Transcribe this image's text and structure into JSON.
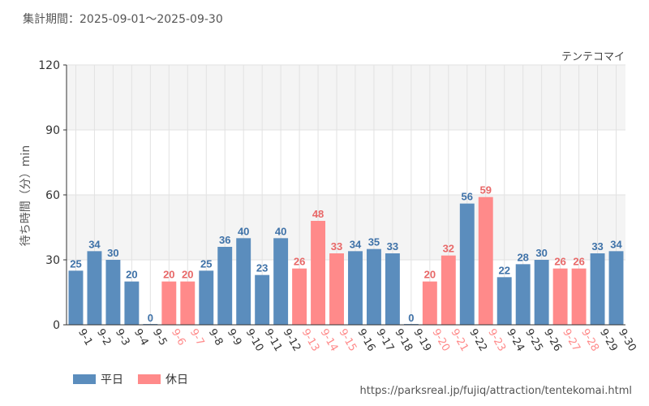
{
  "header": {
    "period_label": "集計期間：2025-09-01～2025-09-30"
  },
  "footer": {
    "source_url": "https://parksreal.jp/fujiq/attraction/tentekomai.html"
  },
  "colors": {
    "weekday": "#5b8dbd",
    "holiday": "#ff8a8a",
    "weekday_text": "#3f72a8",
    "holiday_text": "#e86868",
    "band": "#f4f4f4",
    "grid": "#e2e2e2"
  },
  "chart_data": {
    "type": "bar",
    "title": "テンテコマイ",
    "ylabel": "待ち時間（分）min",
    "xlabel": "",
    "ylim": [
      0,
      120
    ],
    "yticks": [
      0,
      30,
      60,
      90,
      120
    ],
    "legend": [
      {
        "label": "平日",
        "key": "weekday"
      },
      {
        "label": "休日",
        "key": "holiday"
      }
    ],
    "legend_placement": "bottom-left",
    "categories": [
      "9-1",
      "9-2",
      "9-3",
      "9-4",
      "9-5",
      "9-6",
      "9-7",
      "9-8",
      "9-9",
      "9-10",
      "9-11",
      "9-12",
      "9-13",
      "9-14",
      "9-15",
      "9-16",
      "9-17",
      "9-18",
      "9-19",
      "9-20",
      "9-21",
      "9-22",
      "9-23",
      "9-24",
      "9-25",
      "9-26",
      "9-27",
      "9-28",
      "9-29",
      "9-30"
    ],
    "values": [
      25,
      34,
      30,
      20,
      0,
      20,
      20,
      25,
      36,
      40,
      23,
      40,
      26,
      48,
      33,
      34,
      35,
      33,
      0,
      20,
      32,
      56,
      59,
      22,
      28,
      30,
      26,
      26,
      33,
      34
    ],
    "day_type": [
      "weekday",
      "weekday",
      "weekday",
      "weekday",
      "weekday",
      "holiday",
      "holiday",
      "weekday",
      "weekday",
      "weekday",
      "weekday",
      "weekday",
      "holiday",
      "holiday",
      "holiday",
      "weekday",
      "weekday",
      "weekday",
      "weekday",
      "holiday",
      "holiday",
      "weekday",
      "holiday",
      "weekday",
      "weekday",
      "weekday",
      "holiday",
      "holiday",
      "weekday",
      "weekday"
    ]
  }
}
